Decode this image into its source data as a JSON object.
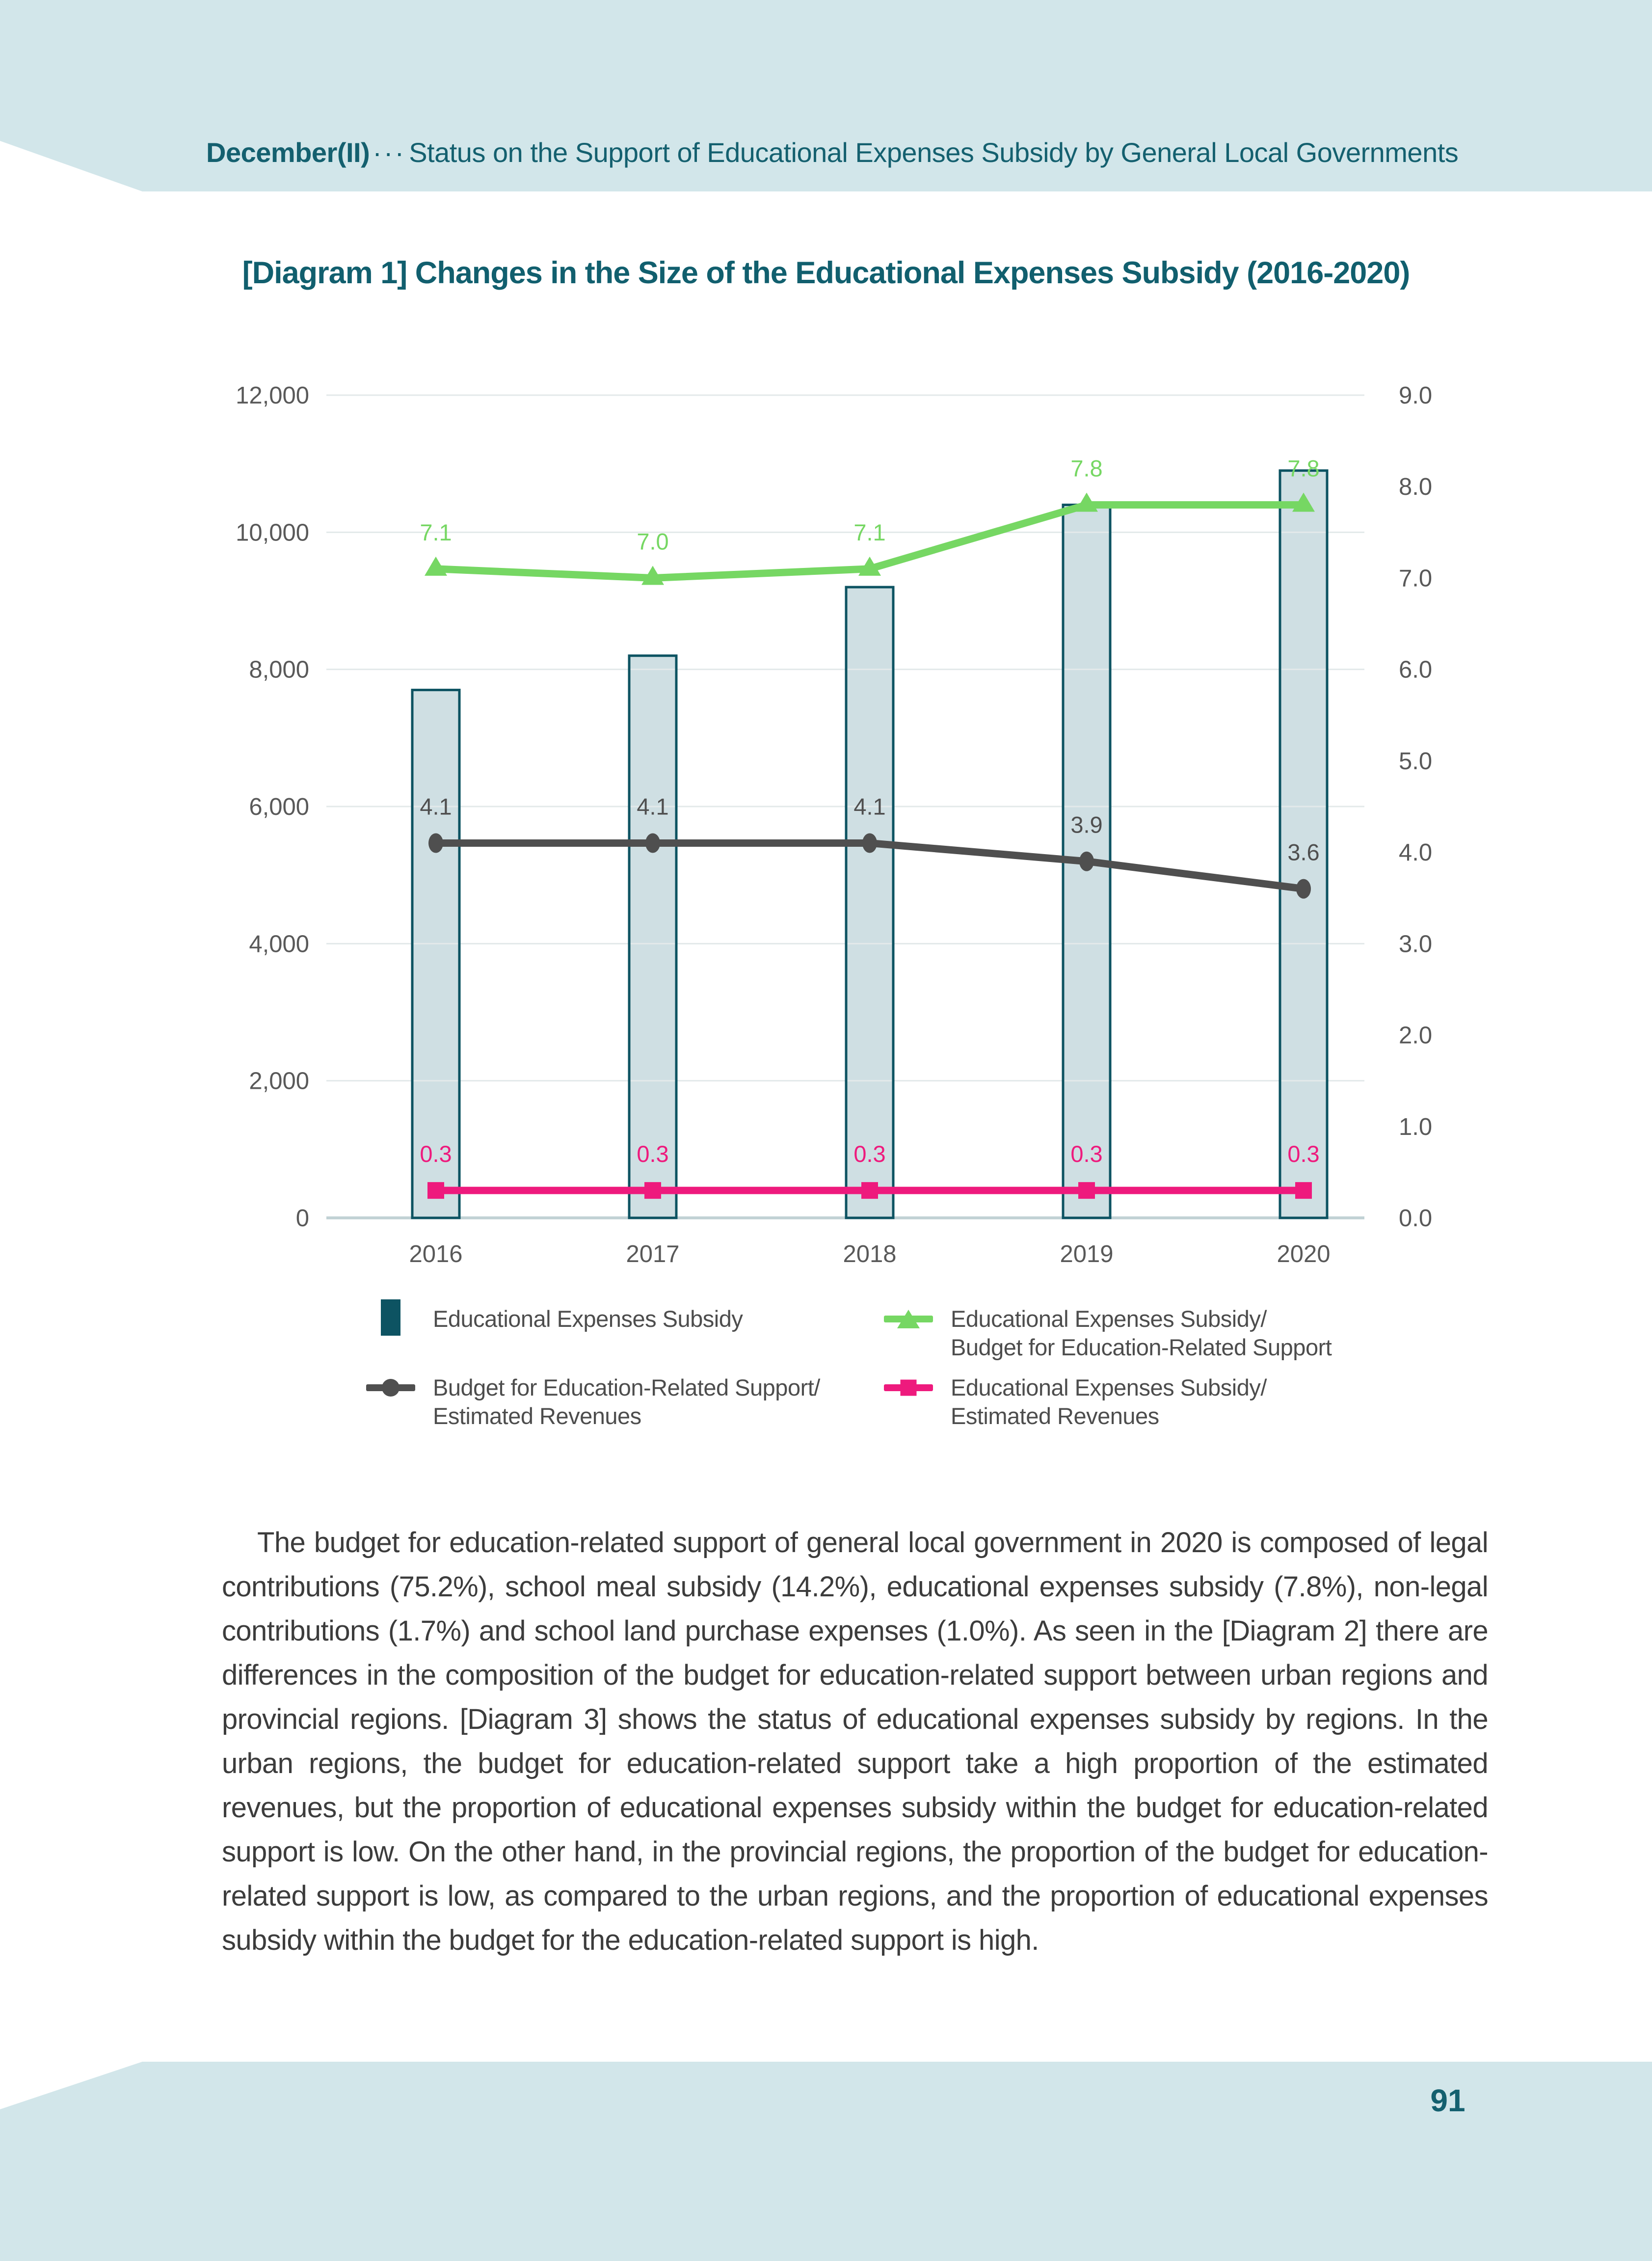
{
  "page": {
    "background_color": "#d2e6ea",
    "panel_color": "#ffffff",
    "accent_teal": "#14606f"
  },
  "header": {
    "edition": "December(II)",
    "separator": "···",
    "title": "Status on the Support of Educational Expenses Subsidy by General Local Governments"
  },
  "diagram": {
    "title": "[Diagram 1] Changes in the Size of the Educational Expenses Subsidy (2016-2020)"
  },
  "chart_data": {
    "type": "bar",
    "subtype": "combo-bar-line-dual-axis",
    "categories": [
      "2016",
      "2017",
      "2018",
      "2019",
      "2020"
    ],
    "series": [
      {
        "name": "Educational Expenses Subsidy",
        "kind": "bar",
        "axis": "left",
        "values": [
          7700,
          8200,
          9200,
          10400,
          10900
        ],
        "values_note": "estimated from bar heights; bars carry no data labels",
        "fill": "#cfdfe3",
        "stroke": "#0d5362"
      },
      {
        "name": "Educational Expenses Subsidy/Budget for Education-Related Support",
        "kind": "line",
        "axis": "right",
        "marker": "triangle",
        "color": "#76d763",
        "values": [
          7.1,
          7.0,
          7.1,
          7.8,
          7.8
        ],
        "labels": [
          "7.1",
          "7.0",
          "7.1",
          "7.8",
          "7.8"
        ]
      },
      {
        "name": "Budget for Education-Related Support/Estimated Revenues",
        "kind": "line",
        "axis": "right",
        "marker": "circle",
        "color": "#4f4f4f",
        "values": [
          4.1,
          4.1,
          4.1,
          3.9,
          3.6
        ],
        "labels": [
          "4.1",
          "4.1",
          "4.1",
          "3.9",
          "3.6"
        ]
      },
      {
        "name": "Educational Expenses Subsidy/Estimated Revenues",
        "kind": "line",
        "axis": "right",
        "marker": "square",
        "color": "#ee1a7d",
        "values": [
          0.3,
          0.3,
          0.3,
          0.3,
          0.3
        ],
        "labels": [
          "0.3",
          "0.3",
          "0.3",
          "0.3",
          "0.3"
        ]
      }
    ],
    "left_axis": {
      "min": 0,
      "max": 12000,
      "step": 2000,
      "tick_labels": [
        "12,000",
        "10,000",
        "8,000",
        "6,000",
        "4,000",
        "2,000",
        "0"
      ]
    },
    "right_axis": {
      "min": 0.0,
      "max": 9.0,
      "step": 1.0,
      "tick_labels": [
        "9.0",
        "8.0",
        "7.0",
        "6.0",
        "5.0",
        "4.0",
        "3.0",
        "2.0",
        "1.0",
        "0.0"
      ]
    },
    "grid": true,
    "gridline_color": "#e3e9ea",
    "baseline_color": "#c2d2d5",
    "tick_label_color": "#595959",
    "legend_position": "bottom"
  },
  "legend": {
    "items": [
      {
        "marker": "bar-swatch",
        "color": "#0d5362",
        "label_lines": [
          "Educational Expenses Subsidy"
        ]
      },
      {
        "marker": "line-triangle",
        "color": "#76d763",
        "label_lines": [
          "Educational Expenses Subsidy/",
          "Budget for Education-Related Support"
        ]
      },
      {
        "marker": "line-circle",
        "color": "#4f4f4f",
        "label_lines": [
          "Budget for Education-Related Support/",
          "Estimated Revenues"
        ]
      },
      {
        "marker": "line-square",
        "color": "#ee1a7d",
        "label_lines": [
          "Educational Expenses Subsidy/",
          "Estimated Revenues"
        ]
      }
    ]
  },
  "paragraph": {
    "text": "The budget for education-related support of general local government in 2020 is composed of legal contributions (75.2%), school meal subsidy (14.2%), educational expenses subsidy (7.8%), non-legal contributions (1.7%) and school land purchase expenses (1.0%). As seen in the [Diagram 2] there are differences in the composition of the budget for education-related support between urban regions and provincial regions. [Diagram 3] shows the status of educational expenses subsidy by regions. In the urban regions, the budget for education-related support take a high proportion of the estimated revenues, but the proportion of educational expenses subsidy within the budget for education-related support is low. On the other hand, in the provincial regions, the proportion of the budget for education-related support is low, as compared to the urban regions, and the proportion of educational expenses subsidy within the budget for the education-related support is high."
  },
  "footer": {
    "page_number": "91"
  }
}
